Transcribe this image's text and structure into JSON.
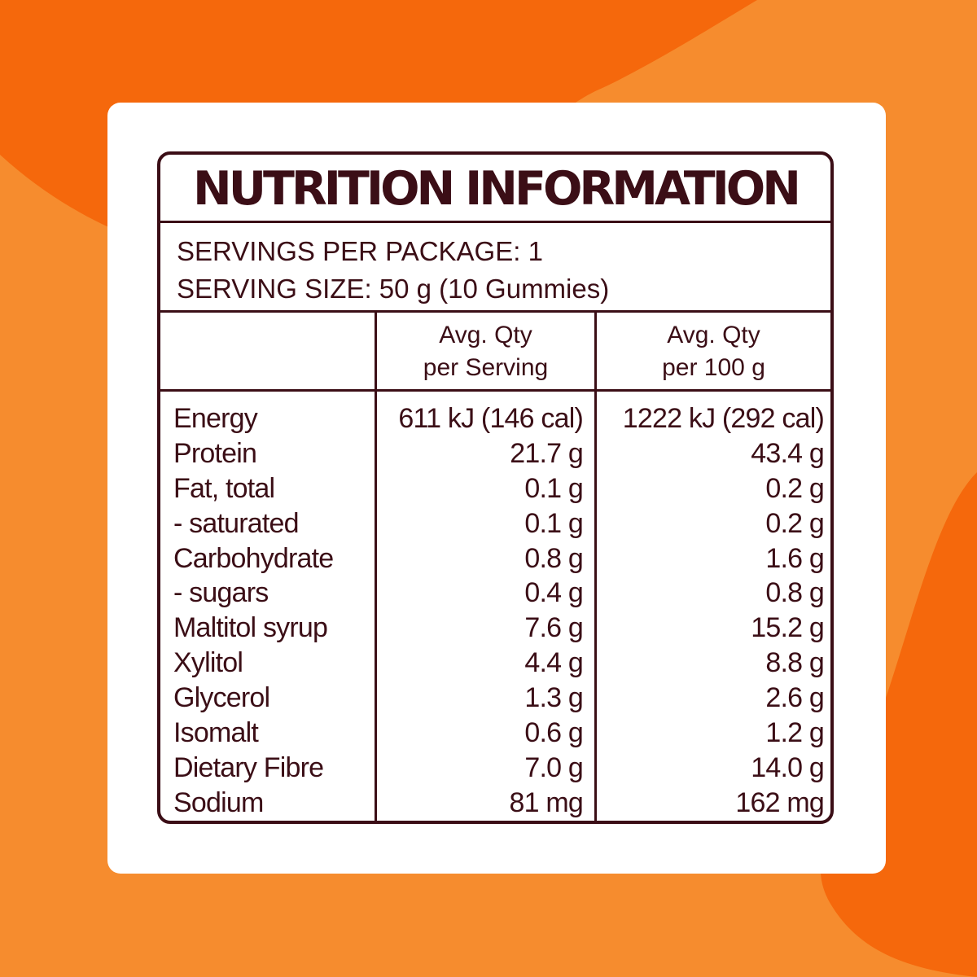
{
  "colors": {
    "background": "#F68C2E",
    "accent_dark_orange": "#F5680C",
    "text": "#3B0E16",
    "card": "#FFFFFF"
  },
  "title": "NUTRITION INFORMATION",
  "servings_per_package": "SERVINGS PER PACKAGE: 1",
  "serving_size": "SERVING SIZE: 50 g (10 Gummies)",
  "columns": [
    {
      "line1": "Avg. Qty",
      "line2": "per Serving"
    },
    {
      "line1": "Avg. Qty",
      "line2": "per 100 g"
    }
  ],
  "rows": [
    {
      "name": "Energy",
      "per_serving": "611 kJ (146 cal)",
      "per_100g": "1222 kJ (292 cal)"
    },
    {
      "name": "Protein",
      "per_serving": "21.7 g",
      "per_100g": "43.4 g"
    },
    {
      "name": "Fat, total",
      "per_serving": "0.1 g",
      "per_100g": "0.2 g"
    },
    {
      "name": "- saturated",
      "per_serving": "0.1 g",
      "per_100g": "0.2 g"
    },
    {
      "name": "Carbohydrate",
      "per_serving": "0.8 g",
      "per_100g": "1.6 g"
    },
    {
      "name": "- sugars",
      "per_serving": "0.4 g",
      "per_100g": "0.8 g"
    },
    {
      "name": "Maltitol syrup",
      "per_serving": "7.6 g",
      "per_100g": "15.2 g"
    },
    {
      "name": "Xylitol",
      "per_serving": "4.4 g",
      "per_100g": "8.8 g"
    },
    {
      "name": "Glycerol",
      "per_serving": "1.3 g",
      "per_100g": "2.6 g"
    },
    {
      "name": "Isomalt",
      "per_serving": "0.6 g",
      "per_100g": "1.2 g"
    },
    {
      "name": "Dietary Fibre",
      "per_serving": "7.0 g",
      "per_100g": "14.0 g"
    },
    {
      "name": "Sodium",
      "per_serving": "81 mg",
      "per_100g": "162 mg"
    }
  ]
}
